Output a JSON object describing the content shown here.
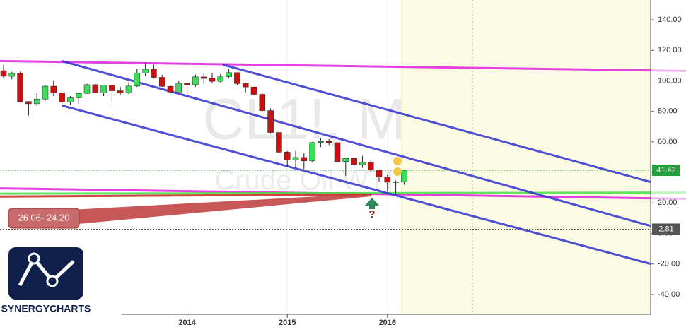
{
  "chart_data": {
    "type": "candlestick",
    "categories": [
      null,
      null,
      null,
      null,
      null,
      null,
      null,
      null,
      null,
      null,
      null,
      null,
      null,
      null,
      null,
      null,
      null,
      null,
      null,
      null,
      null,
      null,
      "2014",
      null,
      null,
      null,
      null,
      null,
      null,
      null,
      null,
      null,
      null,
      null,
      "2015",
      null,
      null,
      null,
      null,
      null,
      null,
      null,
      null,
      null,
      null,
      null,
      "2016",
      null,
      null
    ],
    "open": [
      106.7,
      103,
      104.9,
      86.5,
      85,
      88.1,
      96.5,
      92.2,
      86.2,
      88.9,
      91.8,
      97.5,
      92.1,
      97.2,
      93.5,
      92,
      96.6,
      105,
      107.7,
      102.3,
      96.4,
      92.7,
      98.4,
      97.5,
      102.6,
      101.6,
      99.7,
      102.7,
      105.4,
      98.2,
      96,
      91.2,
      80.5,
      66.2,
      53.3,
      48.2,
      49.8,
      47.6,
      59.6,
      60.3,
      59.5,
      47.1,
      49.2,
      45.1,
      46.6,
      41.7,
      37,
      33.6,
      33.8
    ],
    "high": [
      110.5,
      106,
      106,
      86.5,
      92,
      97,
      100.4,
      93,
      90,
      92,
      98,
      98,
      97.5,
      97.5,
      96,
      99,
      108,
      112,
      110.7,
      104,
      97,
      100,
      98.5,
      104,
      105,
      104.9,
      104.5,
      107.7,
      105.5,
      98.5,
      96,
      92,
      82,
      67,
      54,
      54,
      52.5,
      59.9,
      62.6,
      61.8,
      59.7,
      49.3,
      49.5,
      50.9,
      48.4,
      42,
      38.4,
      34.8,
      41.9
    ],
    "low": [
      102,
      101,
      86,
      77.3,
      83.5,
      87,
      90,
      85,
      84,
      85,
      91.5,
      92,
      90,
      86,
      91,
      91.5,
      96,
      103,
      101.5,
      96,
      91.8,
      92.5,
      91,
      96,
      98,
      98.5,
      99,
      101.5,
      97,
      92.5,
      90.5,
      80,
      65.7,
      52.5,
      43.6,
      43.7,
      42,
      47,
      56.5,
      58,
      46.7,
      37.8,
      43.2,
      43,
      40,
      34,
      27.6,
      26.1,
      32
    ],
    "close": [
      103,
      104.9,
      86.5,
      85,
      88.1,
      96.5,
      92.2,
      86.2,
      88.9,
      91.8,
      97.5,
      92.1,
      97.2,
      93.5,
      92,
      96.6,
      105,
      107.7,
      102.3,
      96.4,
      92.7,
      98.4,
      97.5,
      102.6,
      101.6,
      99.7,
      102.7,
      105.4,
      98.2,
      96,
      91.2,
      80.5,
      66.2,
      53.3,
      48.2,
      49.8,
      47.6,
      59.6,
      60.3,
      59.5,
      47.1,
      49.2,
      45.1,
      46.6,
      41.7,
      37,
      33.6,
      33.8,
      41.42
    ],
    "up_color": "#3ddc5a",
    "down_color": "#cc1111",
    "ylim": [
      -53,
      153
    ],
    "yticks": [
      {
        "value": 140,
        "label": "140.00"
      },
      {
        "value": 120,
        "label": "120.00"
      },
      {
        "value": 100,
        "label": "100.00"
      },
      {
        "value": 80,
        "label": "80.00"
      },
      {
        "value": 60,
        "label": "60.00"
      },
      {
        "value": 40,
        "label": "40.00"
      },
      {
        "value": 20,
        "label": "20.00"
      },
      {
        "value": 0,
        "label": "0.00"
      },
      {
        "value": -20,
        "label": "-20.00"
      },
      {
        "value": -40,
        "label": "-40.00"
      }
    ],
    "grid": true,
    "price_lines": [
      {
        "value": 41.42,
        "color": "#22a03a"
      },
      {
        "value": 2.81,
        "color": "#555555"
      }
    ],
    "trend_lines": [
      {
        "color": "#e020e0",
        "points": [
          [
            -0.5,
            113
          ],
          [
            82,
            106.5
          ]
        ]
      },
      {
        "color": "#e020e0",
        "points": [
          [
            -0.5,
            29.6
          ],
          [
            82,
            22.7
          ]
        ]
      },
      {
        "color": "#cc2020",
        "points": [
          [
            -0.5,
            24.2
          ],
          [
            44.1,
            25.6
          ]
        ]
      },
      {
        "color": "#44e044",
        "points": [
          [
            -0.5,
            26.1
          ],
          [
            82,
            26.8
          ]
        ]
      },
      {
        "color": "#3030d0",
        "points": [
          [
            7,
            83.8
          ],
          [
            77.5,
            -19.9
          ]
        ]
      },
      {
        "color": "#3030d0",
        "points": [
          [
            7,
            113
          ],
          [
            77.5,
            5
          ]
        ]
      },
      {
        "color": "#3030d0",
        "points": [
          [
            26.3,
            110.6
          ],
          [
            77.5,
            33.8
          ]
        ]
      }
    ],
    "watermark": {
      "symbol": "CL1!, M",
      "name": "Crude Oil WTI"
    },
    "annotations": {
      "callout": "26.06- 24.20",
      "question": "?"
    }
  },
  "logo": "SYNERGYCHARTS"
}
